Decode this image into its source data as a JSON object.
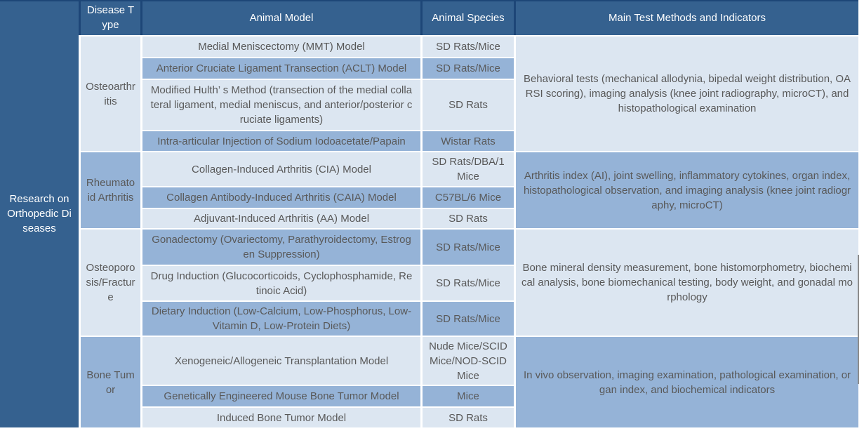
{
  "colors": {
    "header_bg": "#35618F",
    "sidebar_bg": "#35618F",
    "header_divider": "#1D4677",
    "header_text": "#FFFFFF",
    "row_light": "#DCE6F1",
    "row_medium": "#95B3D7",
    "body_text": "#595959",
    "scroll_line": "#8C8C8C"
  },
  "sidebar": {
    "title": "Research on Orthopedic Diseases"
  },
  "table": {
    "headers": {
      "disease_type": "Disease Type",
      "animal_model": "Animal Model",
      "animal_species": "Animal Species",
      "methods": "Main Test Methods and Indicators"
    },
    "groups": [
      {
        "disease": "Osteoarthritis",
        "methods": "Behavioral tests (mechanical allodynia, bipedal weight distribution, OARSI scoring), imaging analysis (knee joint radiography, microCT), and histopathological examination",
        "rows": [
          {
            "model": "Medial Meniscectomy (MMT) Model",
            "species": "SD Rats/Mice"
          },
          {
            "model": "Anterior Cruciate Ligament Transection (ACLT) Model",
            "species": "SD Rats/Mice"
          },
          {
            "model": "Modified Hulth’ s Method (transection of the medial collateral ligament, medial meniscus, and anterior/posterior cruciate ligaments)",
            "species": "SD Rats"
          },
          {
            "model": "Intra-articular Injection of Sodium Iodoacetate/Papain",
            "species": "Wistar Rats"
          }
        ]
      },
      {
        "disease": "Rheumatoid Arthritis",
        "methods": "Arthritis index (AI), joint swelling, inflammatory cytokines, organ index, histopathological observation, and imaging analysis (knee joint radiography, microCT)",
        "rows": [
          {
            "model": "Collagen-Induced Arthritis (CIA) Model",
            "species": "SD Rats/DBA/1 Mice"
          },
          {
            "model": "Collagen Antibody-Induced Arthritis (CAIA) Model",
            "species": "C57BL/6 Mice"
          },
          {
            "model": "Adjuvant-Induced Arthritis (AA) Model",
            "species": "SD Rats"
          }
        ]
      },
      {
        "disease": "Osteoporosis/Fracture",
        "methods": "Bone mineral density measurement, bone histomorphometry, biochemical analysis, bone biomechanical testing, body weight, and gonadal morphology",
        "rows": [
          {
            "model": "Gonadectomy (Ovariectomy, Parathyroidectomy, Estrogen Suppression)",
            "species": "SD Rats/Mice"
          },
          {
            "model": "Drug Induction (Glucocorticoids, Cyclophosphamide, Retinoic Acid)",
            "species": "SD Rats/Mice"
          },
          {
            "model": "Dietary Induction (Low-Calcium, Low-Phosphorus, Low-Vitamin D, Low-Protein Diets)",
            "species": "SD Rats/Mice"
          }
        ]
      },
      {
        "disease": "Bone Tumor",
        "methods": "In vivo observation, imaging examination, pathological examination, organ index, and biochemical indicators",
        "rows": [
          {
            "model": "Xenogeneic/Allogeneic Transplantation Model",
            "species": "Nude Mice/SCID Mice/NOD-SCID Mice"
          },
          {
            "model": "Genetically Engineered Mouse Bone Tumor Model",
            "species": "Mice"
          },
          {
            "model": "Induced Bone Tumor Model",
            "species": "SD Rats"
          }
        ]
      }
    ]
  }
}
